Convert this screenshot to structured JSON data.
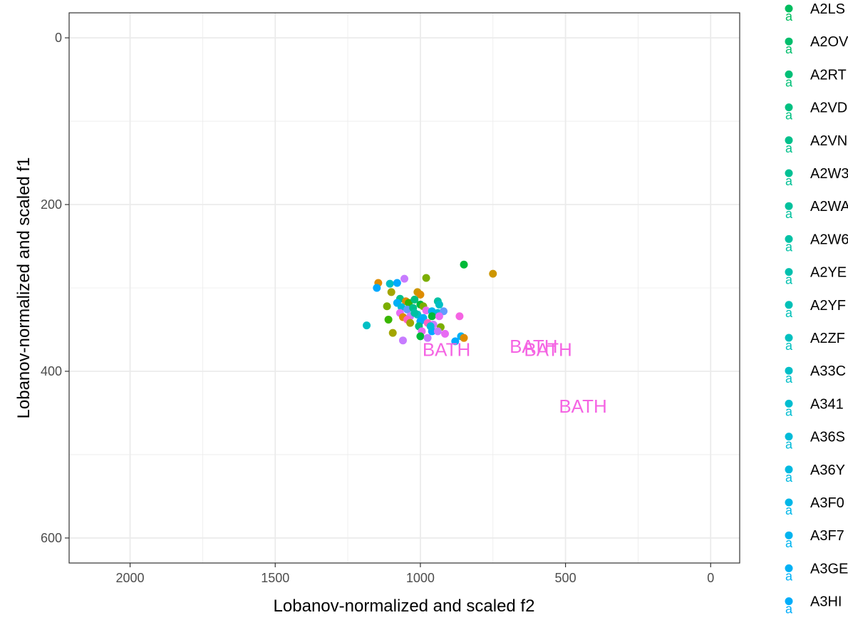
{
  "chart_data": {
    "type": "scatter",
    "xlabel": "Lobanov-normalized and scaled f2",
    "ylabel": "Lobanov-normalized and scaled f1",
    "x_reversed": true,
    "y_reversed": true,
    "xlim": [
      2210,
      -100
    ],
    "ylim": [
      -30,
      630
    ],
    "x_ticks": [
      2000,
      1500,
      1000,
      500,
      0
    ],
    "y_ticks": [
      0,
      200,
      400,
      600
    ],
    "grid": true,
    "legend_position": "right",
    "text_labels": [
      {
        "label": "BATH",
        "x": 910,
        "y": 374,
        "color": "#f564e3"
      },
      {
        "label": "BATH",
        "x": 610,
        "y": 370,
        "color": "#f564e3"
      },
      {
        "label": "BATH",
        "x": 560,
        "y": 374,
        "color": "#f564e3"
      },
      {
        "label": "BATH",
        "x": 440,
        "y": 442,
        "color": "#f564e3"
      }
    ],
    "points": [
      {
        "x": 850,
        "y": 272,
        "color": "#00ba38"
      },
      {
        "x": 750,
        "y": 283,
        "color": "#cd9600"
      },
      {
        "x": 980,
        "y": 288,
        "color": "#7cae00"
      },
      {
        "x": 1055,
        "y": 289,
        "color": "#c77cff"
      },
      {
        "x": 1145,
        "y": 294,
        "color": "#de8c00"
      },
      {
        "x": 1105,
        "y": 295,
        "color": "#00bfc4"
      },
      {
        "x": 1080,
        "y": 294,
        "color": "#00a9ff"
      },
      {
        "x": 1150,
        "y": 300,
        "color": "#00a9ff"
      },
      {
        "x": 1100,
        "y": 305,
        "color": "#a3a500"
      },
      {
        "x": 1010,
        "y": 305,
        "color": "#cd9600"
      },
      {
        "x": 1000,
        "y": 308,
        "color": "#de8c00"
      },
      {
        "x": 1070,
        "y": 313,
        "color": "#00c08b"
      },
      {
        "x": 1050,
        "y": 316,
        "color": "#de8c00"
      },
      {
        "x": 1080,
        "y": 318,
        "color": "#00b0f6"
      },
      {
        "x": 1040,
        "y": 318,
        "color": "#39b600"
      },
      {
        "x": 1020,
        "y": 314,
        "color": "#00bf7d"
      },
      {
        "x": 940,
        "y": 316,
        "color": "#00c1a3"
      },
      {
        "x": 935,
        "y": 320,
        "color": "#00bfc4"
      },
      {
        "x": 1115,
        "y": 322,
        "color": "#7cae00"
      },
      {
        "x": 1000,
        "y": 320,
        "color": "#00ba38"
      },
      {
        "x": 990,
        "y": 322,
        "color": "#7cae00"
      },
      {
        "x": 1065,
        "y": 323,
        "color": "#00bcd8"
      },
      {
        "x": 1045,
        "y": 326,
        "color": "#619cff"
      },
      {
        "x": 1025,
        "y": 324,
        "color": "#00c08b"
      },
      {
        "x": 980,
        "y": 327,
        "color": "#e76bf3"
      },
      {
        "x": 960,
        "y": 328,
        "color": "#00b4ef"
      },
      {
        "x": 940,
        "y": 330,
        "color": "#00bcd8"
      },
      {
        "x": 920,
        "y": 328,
        "color": "#619cff"
      },
      {
        "x": 1070,
        "y": 330,
        "color": "#e76bf3"
      },
      {
        "x": 1060,
        "y": 335,
        "color": "#de8c00"
      },
      {
        "x": 1035,
        "y": 334,
        "color": "#c77cff"
      },
      {
        "x": 1010,
        "y": 332,
        "color": "#00bfc4"
      },
      {
        "x": 990,
        "y": 336,
        "color": "#00b0f6"
      },
      {
        "x": 960,
        "y": 334,
        "color": "#00ba38"
      },
      {
        "x": 935,
        "y": 334,
        "color": "#e76bf3"
      },
      {
        "x": 865,
        "y": 334,
        "color": "#f564e3"
      },
      {
        "x": 1110,
        "y": 338,
        "color": "#39b600"
      },
      {
        "x": 1045,
        "y": 338,
        "color": "#ff61c3"
      },
      {
        "x": 1000,
        "y": 340,
        "color": "#00a9ff"
      },
      {
        "x": 975,
        "y": 342,
        "color": "#ff61c3"
      },
      {
        "x": 955,
        "y": 344,
        "color": "#c77cff"
      },
      {
        "x": 1035,
        "y": 342,
        "color": "#a3a500"
      },
      {
        "x": 1005,
        "y": 346,
        "color": "#00bf7d"
      },
      {
        "x": 930,
        "y": 347,
        "color": "#7cae00"
      },
      {
        "x": 1185,
        "y": 345,
        "color": "#00bfc4"
      },
      {
        "x": 995,
        "y": 352,
        "color": "#e76bf3"
      },
      {
        "x": 960,
        "y": 352,
        "color": "#00a9ff"
      },
      {
        "x": 940,
        "y": 352,
        "color": "#c77cff"
      },
      {
        "x": 915,
        "y": 355,
        "color": "#e76bf3"
      },
      {
        "x": 1095,
        "y": 354,
        "color": "#a3a500"
      },
      {
        "x": 1000,
        "y": 358,
        "color": "#00ba38"
      },
      {
        "x": 975,
        "y": 360,
        "color": "#c77cff"
      },
      {
        "x": 860,
        "y": 358,
        "color": "#00b0f6"
      },
      {
        "x": 850,
        "y": 360,
        "color": "#de8c00"
      },
      {
        "x": 880,
        "y": 364,
        "color": "#00a9ff"
      },
      {
        "x": 1060,
        "y": 363,
        "color": "#c77cff"
      },
      {
        "x": 965,
        "y": 346,
        "color": "#00bcd8"
      },
      {
        "x": 1020,
        "y": 330,
        "color": "#00c1a3"
      }
    ],
    "legend": [
      {
        "label": "A2LS",
        "color": "#00bd5f"
      },
      {
        "label": "A2OV",
        "color": "#00be6c"
      },
      {
        "label": "A2RT",
        "color": "#00bf77"
      },
      {
        "label": "A2VD",
        "color": "#00c081"
      },
      {
        "label": "A2VN",
        "color": "#00c08b"
      },
      {
        "label": "A2W3",
        "color": "#00c094"
      },
      {
        "label": "A2WA",
        "color": "#00c19d"
      },
      {
        "label": "A2W6",
        "color": "#00c1a5"
      },
      {
        "label": "A2YE",
        "color": "#00c0ae"
      },
      {
        "label": "A2YF",
        "color": "#00c0b7"
      },
      {
        "label": "A2ZF",
        "color": "#00c0bf"
      },
      {
        "label": "A33C",
        "color": "#00bec7"
      },
      {
        "label": "A341",
        "color": "#00bdd0"
      },
      {
        "label": "A36S",
        "color": "#00bbd8"
      },
      {
        "label": "A36Y",
        "color": "#00b9e0"
      },
      {
        "label": "A3F0",
        "color": "#00b7e8"
      },
      {
        "label": "A3F7",
        "color": "#00b4ef"
      },
      {
        "label": "A3GE",
        "color": "#00b1f5"
      },
      {
        "label": "A3HI",
        "color": "#00adfa"
      }
    ]
  }
}
